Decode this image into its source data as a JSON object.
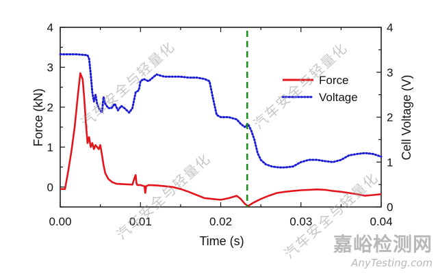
{
  "chart_data": {
    "type": "line",
    "xlabel": "Time (s)",
    "ylabel_left": "Force (kN)",
    "ylabel_right": "Cell Voltage (V)",
    "xlim": [
      0.0,
      0.04
    ],
    "ylim_left": [
      -0.5,
      4.0
    ],
    "ylim_right": [
      0,
      4
    ],
    "xticks": [
      "0.00",
      "0.01",
      "0.02",
      "0.03",
      "0.04"
    ],
    "yticks_left": [
      "0",
      "1",
      "2",
      "3",
      "4"
    ],
    "yticks_right": [
      "0",
      "1",
      "2",
      "3",
      "4"
    ],
    "grid": false,
    "legend_position": "top-right",
    "vline": {
      "x": 0.0233,
      "color": "#1a8a1a",
      "style": "dashed"
    },
    "series": [
      {
        "name": "Force",
        "axis": "left",
        "color": "#e3141b",
        "style": "solid",
        "x": [
          0.0,
          0.0006,
          0.001,
          0.0014,
          0.0018,
          0.0022,
          0.0025,
          0.0028,
          0.003,
          0.0032,
          0.0034,
          0.0036,
          0.0038,
          0.004,
          0.0042,
          0.0044,
          0.0046,
          0.0048,
          0.005,
          0.0052,
          0.0054,
          0.0056,
          0.006,
          0.0065,
          0.007,
          0.008,
          0.009,
          0.0093,
          0.0094,
          0.0095,
          0.0096,
          0.01,
          0.0105,
          0.0106,
          0.0107,
          0.011,
          0.012,
          0.013,
          0.014,
          0.015,
          0.016,
          0.017,
          0.018,
          0.019,
          0.02,
          0.021,
          0.022,
          0.0225,
          0.023,
          0.0234,
          0.024,
          0.025,
          0.026,
          0.027,
          0.028,
          0.029,
          0.03,
          0.031,
          0.032,
          0.033,
          0.034,
          0.035,
          0.036,
          0.037,
          0.038,
          0.039,
          0.04
        ],
        "y": [
          -0.05,
          -0.05,
          0.4,
          0.9,
          1.5,
          2.3,
          2.85,
          2.7,
          2.2,
          1.6,
          1.1,
          1.25,
          1.0,
          1.1,
          0.95,
          1.05,
          1.0,
          0.95,
          1.05,
          0.8,
          0.55,
          0.35,
          0.2,
          0.12,
          0.08,
          0.07,
          0.06,
          0.25,
          0.3,
          0.1,
          0.05,
          0.05,
          0.02,
          -0.15,
          0.02,
          0.05,
          0.04,
          0.02,
          0.0,
          -0.05,
          -0.12,
          -0.2,
          -0.28,
          -0.3,
          -0.32,
          -0.28,
          -0.22,
          -0.3,
          -0.42,
          -0.48,
          -0.4,
          -0.3,
          -0.22,
          -0.15,
          -0.12,
          -0.1,
          -0.08,
          -0.07,
          -0.06,
          -0.07,
          -0.1,
          -0.12,
          -0.15,
          -0.18,
          -0.22,
          -0.2,
          -0.18
        ]
      },
      {
        "name": "Voltage",
        "axis": "right",
        "color": "#1b1bd6",
        "style": "dotted",
        "x": [
          0.0,
          0.002,
          0.0034,
          0.0036,
          0.0038,
          0.004,
          0.0042,
          0.0044,
          0.0046,
          0.0048,
          0.005,
          0.0052,
          0.0054,
          0.0056,
          0.006,
          0.0064,
          0.0068,
          0.0072,
          0.0076,
          0.008,
          0.0086,
          0.009,
          0.0094,
          0.0098,
          0.01,
          0.0104,
          0.011,
          0.012,
          0.013,
          0.014,
          0.015,
          0.016,
          0.017,
          0.018,
          0.0186,
          0.019,
          0.0195,
          0.02,
          0.021,
          0.022,
          0.0225,
          0.023,
          0.0234,
          0.0238,
          0.0242,
          0.0246,
          0.025,
          0.0256,
          0.0264,
          0.0272,
          0.028,
          0.029,
          0.03,
          0.031,
          0.032,
          0.033,
          0.034,
          0.035,
          0.036,
          0.037,
          0.038,
          0.039,
          0.04
        ],
        "y": [
          3.4,
          3.4,
          3.38,
          3.3,
          2.95,
          2.55,
          2.35,
          2.5,
          2.3,
          2.2,
          2.15,
          2.1,
          2.45,
          2.3,
          2.2,
          2.2,
          2.3,
          2.15,
          2.25,
          2.2,
          2.1,
          2.2,
          2.55,
          2.6,
          2.8,
          2.85,
          2.8,
          2.95,
          2.9,
          2.9,
          2.9,
          2.88,
          2.88,
          2.85,
          2.8,
          2.45,
          2.05,
          2.0,
          2.0,
          1.95,
          1.85,
          1.78,
          1.85,
          1.7,
          1.5,
          1.2,
          1.05,
          0.95,
          0.9,
          0.88,
          0.88,
          0.9,
          1.0,
          1.05,
          1.05,
          1.02,
          1.0,
          1.05,
          1.15,
          1.18,
          1.2,
          1.18,
          1.12
        ]
      }
    ]
  },
  "watermarks": {
    "text": "汽车安全与轻量化"
  },
  "brand": {
    "name_cn": "嘉峪检测网",
    "name_en": "AnyTesting.com"
  }
}
